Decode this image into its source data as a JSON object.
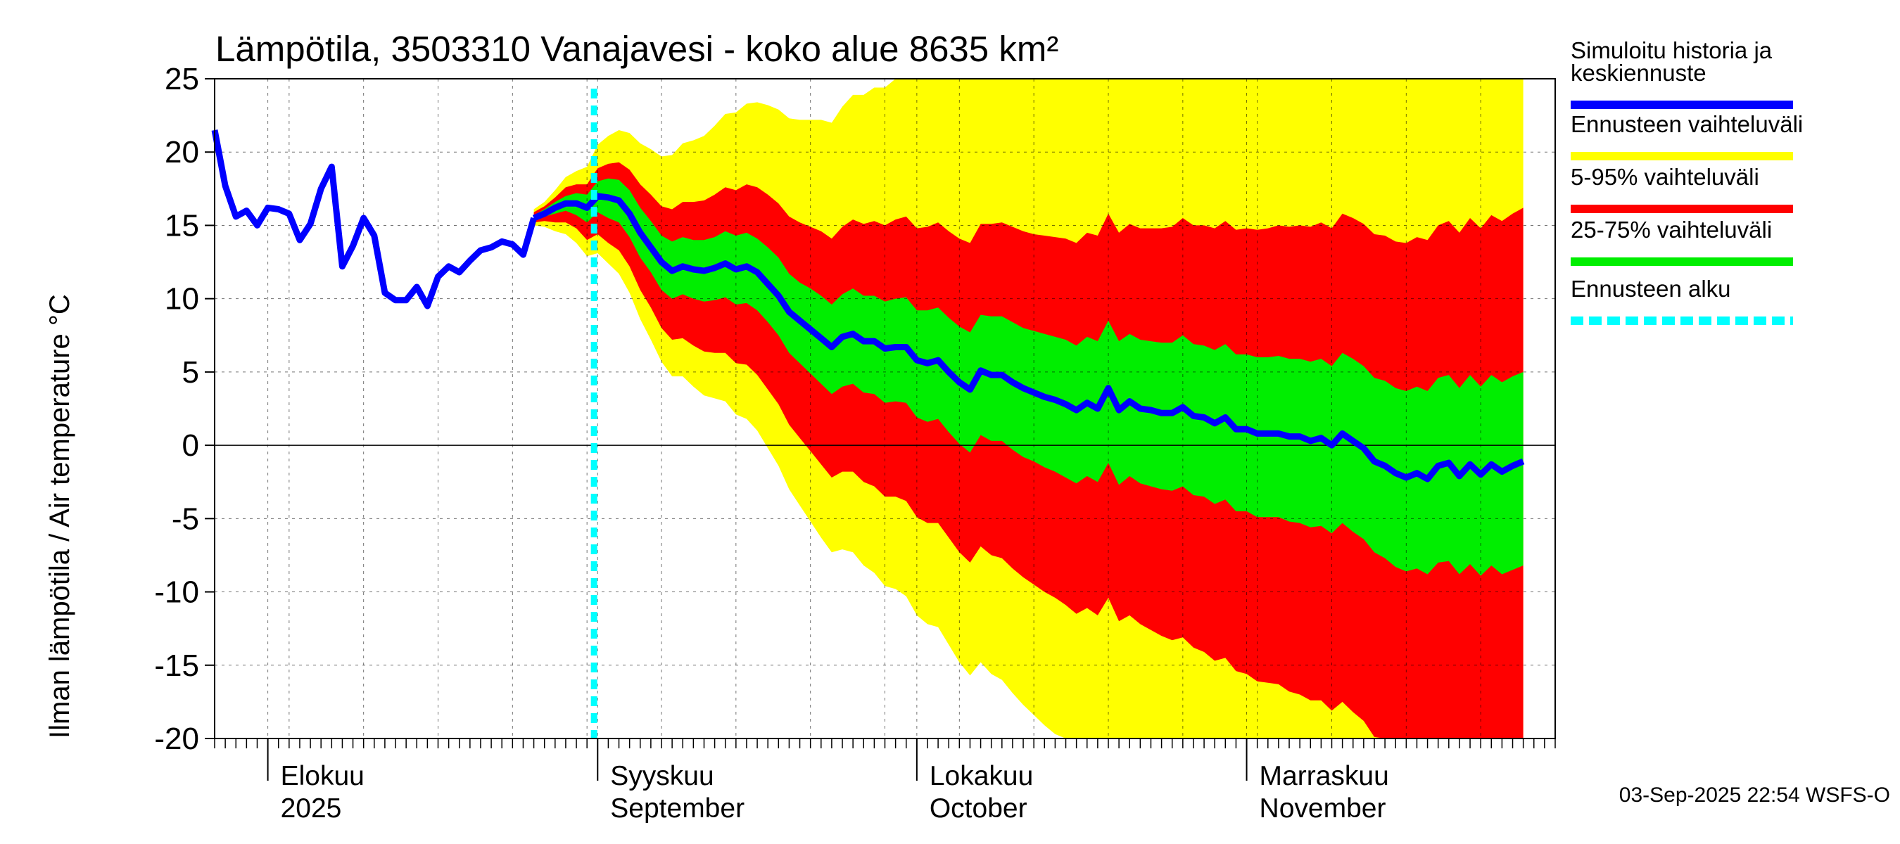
{
  "chart_data": {
    "type": "area",
    "title": "Lämpötila, 3503310 Vanajavesi - koko alue 8635 km²",
    "ylabel": "Ilman lämpötila / Air temperature    °C",
    "ylim": [
      -20,
      25
    ],
    "yticks": [
      25,
      20,
      15,
      10,
      5,
      0,
      -5,
      -10,
      -15,
      -20
    ],
    "xlim": [
      "2025-07-27",
      "2025-11-30"
    ],
    "grid": true,
    "month_labels": [
      {
        "date": "2025-08-01",
        "line1": "Elokuu",
        "line2": "2025"
      },
      {
        "date": "2025-09-01",
        "line1": "Syyskuu",
        "line2": "September"
      },
      {
        "date": "2025-10-01",
        "line1": "Lokakuu",
        "line2": "October"
      },
      {
        "date": "2025-11-01",
        "line1": "Marraskuu",
        "line2": "November"
      }
    ],
    "forecast_start": "2025-08-31",
    "footer": "03-Sep-2025 22:54 WSFS-O",
    "legend": [
      {
        "label_lines": [
          "Simuloitu historia ja",
          "keskiennuste"
        ],
        "color": "#0000ff",
        "style": "solid"
      },
      {
        "label_lines": [
          "Ennusteen vaihteluväli"
        ],
        "color": "#ffff00",
        "style": "solid"
      },
      {
        "label_lines": [
          "5-95% vaihteluväli"
        ],
        "color": "#ff0000",
        "style": "solid"
      },
      {
        "label_lines": [
          "25-75% vaihteluväli"
        ],
        "color": "#00ee00",
        "style": "solid"
      },
      {
        "label_lines": [
          "Ennusteen alku"
        ],
        "color": "#00ffff",
        "style": "dashed"
      }
    ],
    "colors": {
      "median": "#0000ff",
      "minmax": "#ffff00",
      "p5_95": "#ff0000",
      "p25_75": "#00ee00",
      "forecast_start": "#00ffff"
    },
    "history": {
      "start": "2025-07-27",
      "values": [
        21.5,
        17.7,
        15.6,
        16.0,
        15.0,
        16.2,
        16.1,
        15.8,
        14.0,
        15.1,
        17.5,
        19.0,
        12.2,
        13.6,
        15.5,
        14.3,
        10.4,
        9.9,
        9.9,
        10.8,
        9.5,
        11.5,
        12.2,
        11.8,
        12.6,
        13.3,
        13.5,
        13.9,
        13.7,
        13.0,
        15.5
      ]
    },
    "forecast": {
      "start": "2025-08-26",
      "median": [
        15.5,
        15.8,
        16.2,
        16.5,
        16.5,
        16.2,
        17.0,
        16.9,
        16.7,
        15.8,
        14.5,
        13.5,
        12.5,
        11.9,
        12.2,
        12.0,
        11.9,
        12.1,
        12.4,
        12.0,
        12.2,
        11.8,
        11.0,
        10.2,
        9.1,
        8.5,
        7.9,
        7.3,
        6.7,
        7.4,
        7.6,
        7.1,
        7.1,
        6.6,
        6.7,
        6.7,
        5.8,
        5.6,
        5.8,
        5.0,
        4.3,
        3.8,
        5.1,
        4.8,
        4.8,
        4.3,
        3.9,
        3.6,
        3.3,
        3.1,
        2.8,
        2.4,
        2.9,
        2.5,
        3.9,
        2.4,
        3.0,
        2.5,
        2.4,
        2.2,
        2.2,
        2.6,
        2.0,
        1.9,
        1.5,
        1.9,
        1.1,
        1.1,
        0.8,
        0.8,
        0.8,
        0.6,
        0.6,
        0.3,
        0.5,
        0.0,
        0.8,
        0.3,
        -0.2,
        -1.1,
        -1.4,
        -1.9,
        -2.2,
        -1.9,
        -2.3,
        -1.4,
        -1.2,
        -2.1,
        -1.3,
        -2.0,
        -1.3,
        -1.8,
        -1.4,
        -1.1
      ],
      "p25": [
        15.4,
        15.6,
        15.8,
        16.0,
        15.7,
        15.2,
        15.9,
        15.5,
        15.2,
        14.2,
        12.8,
        11.8,
        10.6,
        10.0,
        10.3,
        10.0,
        9.8,
        9.9,
        10.1,
        9.6,
        9.7,
        9.2,
        8.4,
        7.5,
        6.3,
        5.6,
        4.9,
        4.2,
        3.5,
        4.0,
        4.2,
        3.6,
        3.5,
        2.9,
        3.0,
        2.9,
        1.9,
        1.6,
        1.8,
        0.9,
        0.1,
        -0.5,
        0.7,
        0.3,
        0.3,
        -0.3,
        -0.8,
        -1.1,
        -1.5,
        -1.8,
        -2.2,
        -2.6,
        -2.1,
        -2.5,
        -1.2,
        -2.7,
        -2.1,
        -2.6,
        -2.8,
        -3.0,
        -3.1,
        -2.8,
        -3.4,
        -3.5,
        -4.0,
        -3.7,
        -4.5,
        -4.5,
        -4.9,
        -4.9,
        -4.9,
        -5.2,
        -5.3,
        -5.6,
        -5.5,
        -6.0,
        -5.3,
        -5.9,
        -6.4,
        -7.3,
        -7.7,
        -8.3,
        -8.6,
        -8.4,
        -8.8,
        -8.0,
        -7.9,
        -8.8,
        -8.1,
        -8.9,
        -8.2,
        -8.8,
        -8.5,
        -8.2
      ],
      "p75": [
        15.7,
        16.1,
        16.6,
        17.0,
        17.2,
        17.1,
        18.0,
        18.2,
        18.1,
        17.4,
        16.2,
        15.3,
        14.3,
        13.9,
        14.2,
        14.0,
        14.0,
        14.2,
        14.6,
        14.3,
        14.5,
        14.1,
        13.5,
        12.8,
        11.7,
        11.1,
        10.7,
        10.2,
        9.6,
        10.3,
        10.7,
        10.2,
        10.2,
        9.8,
        10.0,
        10.1,
        9.2,
        9.2,
        9.4,
        8.7,
        8.1,
        7.7,
        8.9,
        8.8,
        8.8,
        8.4,
        8.0,
        7.8,
        7.6,
        7.4,
        7.2,
        6.8,
        7.4,
        7.1,
        8.5,
        7.1,
        7.6,
        7.2,
        7.1,
        7.0,
        7.0,
        7.5,
        6.9,
        6.8,
        6.5,
        6.9,
        6.2,
        6.2,
        6.0,
        6.0,
        6.1,
        5.9,
        5.9,
        5.7,
        5.9,
        5.4,
        6.3,
        5.9,
        5.4,
        4.6,
        4.4,
        3.9,
        3.7,
        4.0,
        3.7,
        4.6,
        4.8,
        3.9,
        4.8,
        4.0,
        4.8,
        4.3,
        4.7,
        5.0
      ],
      "p5": [
        15.2,
        15.3,
        15.2,
        15.2,
        14.8,
        14.0,
        14.4,
        13.8,
        13.3,
        12.2,
        10.6,
        9.4,
        8.0,
        7.2,
        7.3,
        6.8,
        6.4,
        6.3,
        6.3,
        5.6,
        5.5,
        4.8,
        3.8,
        2.8,
        1.4,
        0.5,
        -0.4,
        -1.3,
        -2.2,
        -1.8,
        -1.8,
        -2.5,
        -2.8,
        -3.5,
        -3.5,
        -3.8,
        -4.9,
        -5.3,
        -5.3,
        -6.3,
        -7.3,
        -8.0,
        -6.9,
        -7.5,
        -7.7,
        -8.4,
        -9.0,
        -9.5,
        -10.0,
        -10.4,
        -10.9,
        -11.5,
        -11.1,
        -11.6,
        -10.4,
        -12.0,
        -11.6,
        -12.2,
        -12.6,
        -13.0,
        -13.3,
        -13.1,
        -13.8,
        -14.1,
        -14.7,
        -14.5,
        -15.4,
        -15.6,
        -16.1,
        -16.2,
        -16.3,
        -16.8,
        -17.0,
        -17.4,
        -17.4,
        -18.1,
        -17.5,
        -18.2,
        -18.8,
        -19.9,
        -20.4,
        -21.2,
        -21.6,
        -21.5,
        -22.1,
        -21.4,
        -21.4,
        -22.5,
        -21.9,
        -22.8,
        -22.2,
        -23.0,
        -22.7,
        -22.5
      ],
      "p95": [
        15.9,
        16.3,
        16.9,
        17.6,
        17.8,
        17.8,
        18.9,
        19.2,
        19.3,
        18.8,
        17.8,
        17.1,
        16.3,
        16.1,
        16.6,
        16.6,
        16.7,
        17.1,
        17.6,
        17.4,
        17.8,
        17.6,
        17.1,
        16.5,
        15.6,
        15.2,
        14.9,
        14.6,
        14.1,
        14.9,
        15.4,
        15.1,
        15.3,
        15.0,
        15.4,
        15.6,
        14.8,
        14.9,
        15.2,
        14.6,
        14.1,
        13.8,
        15.1,
        15.1,
        15.2,
        14.9,
        14.6,
        14.4,
        14.3,
        14.2,
        14.1,
        13.8,
        14.5,
        14.3,
        15.8,
        14.5,
        15.1,
        14.8,
        14.8,
        14.8,
        14.9,
        15.5,
        15.0,
        15.0,
        14.8,
        15.3,
        14.7,
        14.8,
        14.7,
        14.8,
        15.0,
        14.9,
        15.0,
        14.9,
        15.2,
        14.8,
        15.8,
        15.5,
        15.1,
        14.4,
        14.3,
        13.9,
        13.8,
        14.2,
        14.0,
        15.0,
        15.3,
        14.5,
        15.5,
        14.8,
        15.7,
        15.3,
        15.8,
        16.2
      ],
      "min": [
        15.0,
        14.9,
        14.6,
        14.4,
        13.8,
        12.9,
        13.1,
        12.4,
        11.7,
        10.4,
        8.6,
        7.2,
        5.7,
        4.7,
        4.7,
        4.0,
        3.4,
        3.2,
        3.0,
        2.1,
        1.8,
        1.0,
        -0.2,
        -1.4,
        -3.0,
        -4.1,
        -5.2,
        -6.3,
        -7.3,
        -7.1,
        -7.3,
        -8.2,
        -8.7,
        -9.6,
        -9.8,
        -10.3,
        -11.6,
        -12.2,
        -12.4,
        -13.6,
        -14.8,
        -15.7,
        -14.8,
        -15.6,
        -16.0,
        -16.9,
        -17.7,
        -18.4,
        -19.1,
        -19.7,
        -20.4,
        -21.2,
        -21.0,
        -21.7,
        -20.7,
        -22.5,
        -22.3,
        -23.1,
        -23.8,
        -24.4,
        -24.9,
        -25.0,
        -25.9,
        -26.4,
        -27.2,
        -27.2,
        -28.3,
        -28.7,
        -29.4,
        -29.7,
        -30.0,
        -30.7,
        -31.1,
        -31.7,
        -31.9,
        -32.8,
        -32.4,
        -33.3,
        -34.1,
        -35.4,
        -36.1,
        -37.1,
        -37.7,
        -37.8,
        -38.6,
        -38.1,
        -38.3,
        -39.6,
        -39.2,
        -40.3,
        -39.9,
        -40.9,
        -40.8,
        -40.8
      ],
      "max": [
        16.1,
        16.6,
        17.4,
        18.3,
        18.7,
        19.0,
        20.5,
        21.1,
        21.5,
        21.3,
        20.6,
        20.2,
        19.7,
        19.8,
        20.6,
        20.8,
        21.1,
        21.8,
        22.6,
        22.7,
        23.3,
        23.4,
        23.2,
        22.9,
        22.3,
        22.2,
        22.2,
        22.2,
        22.0,
        23.1,
        23.9,
        23.9,
        24.4,
        24.4,
        25.0,
        25.5,
        25.0,
        25.3,
        25.8,
        25.5,
        25.3,
        25.2,
        26.8,
        27.1,
        27.5,
        27.5,
        27.4,
        27.5,
        27.6,
        27.7,
        27.8,
        27.8,
        28.7,
        28.8,
        30.5,
        29.5,
        30.4,
        30.3,
        30.6,
        30.8,
        31.2,
        32.1,
        31.9,
        32.1,
        32.2,
        32.9,
        32.6,
        32.9,
        33.0,
        33.4,
        33.8,
        33.9,
        34.3,
        34.4,
        34.9,
        34.7,
        36.0,
        35.9,
        35.7,
        35.3,
        35.4,
        35.2,
        35.3,
        35.9,
        35.9,
        37.1,
        37.6,
        37.0,
        38.2,
        37.7,
        38.8,
        38.6,
        39.3,
        39.9
      ]
    }
  }
}
